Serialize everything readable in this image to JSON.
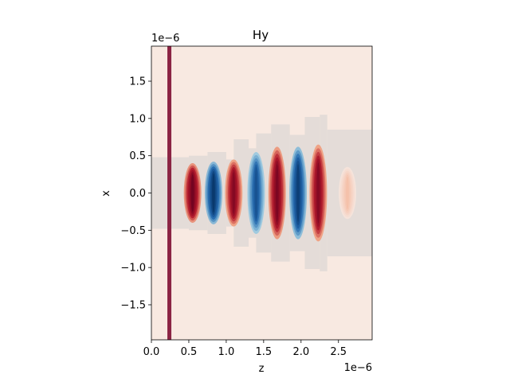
{
  "chart_data": {
    "type": "heatmap",
    "title": "Hy",
    "xlabel": "z",
    "ylabel": "x",
    "xlim": [
      0,
      2.95e-06
    ],
    "ylim": [
      -1.97e-06,
      1.97e-06
    ],
    "x_offset_text": "1e−6",
    "y_offset_text": "1e−6",
    "x_ticks": [
      0.0,
      5e-07,
      1e-06,
      1.5e-06,
      2e-06,
      2.5e-06
    ],
    "x_tick_labels": [
      "0.0",
      "0.5",
      "1.0",
      "1.5",
      "2.0",
      "2.5"
    ],
    "y_ticks": [
      1.5e-06,
      1e-06,
      5e-07,
      0.0,
      -5e-07,
      -1e-06,
      -1.5e-06
    ],
    "y_tick_labels": [
      "1.5",
      "1.0",
      "0.5",
      "0.0",
      "−0.5",
      "−1.0",
      "−1.5"
    ],
    "colormap": "RdBu_r",
    "background_color": "#f8e9e1",
    "source_line": {
      "z": 2.4e-07,
      "color": "#8b2444"
    },
    "gray_regions": [
      {
        "z_start": 0.0,
        "z_end": 5e-07,
        "half_width": 4.8e-07
      },
      {
        "z_start": 5e-07,
        "z_end": 7.5e-07,
        "half_width": 5e-07
      },
      {
        "z_start": 7.5e-07,
        "z_end": 1e-06,
        "half_width": 5.5e-07
      },
      {
        "z_start": 1e-06,
        "z_end": 1.1e-06,
        "half_width": 4.5e-07
      },
      {
        "z_start": 1.1e-06,
        "z_end": 1.3e-06,
        "half_width": 7.2e-07
      },
      {
        "z_start": 1.3e-06,
        "z_end": 1.4e-06,
        "half_width": 6e-07
      },
      {
        "z_start": 1.4e-06,
        "z_end": 1.6e-06,
        "half_width": 8e-07
      },
      {
        "z_start": 1.6e-06,
        "z_end": 1.85e-06,
        "half_width": 9.2e-07
      },
      {
        "z_start": 1.85e-06,
        "z_end": 2.05e-06,
        "half_width": 7.8e-07
      },
      {
        "z_start": 2.05e-06,
        "z_end": 2.25e-06,
        "half_width": 1.02e-06
      },
      {
        "z_start": 2.25e-06,
        "z_end": 2.35e-06,
        "half_width": 1.05e-06
      },
      {
        "z_start": 2.35e-06,
        "z_end": 2.95e-06,
        "half_width": 8.5e-07
      }
    ],
    "field_lobes": [
      {
        "z": 5.5e-07,
        "value": 0.95,
        "half_width": 4e-07
      },
      {
        "z": 8.3e-07,
        "value": -0.95,
        "half_width": 4.2e-07
      },
      {
        "z": 1.1e-06,
        "value": 0.85,
        "half_width": 4.5e-07
      },
      {
        "z": 1.4e-06,
        "value": -0.75,
        "half_width": 5.5e-07
      },
      {
        "z": 1.68e-06,
        "value": 0.9,
        "half_width": 6.2e-07
      },
      {
        "z": 1.96e-06,
        "value": -0.9,
        "half_width": 6.2e-07
      },
      {
        "z": 2.23e-06,
        "value": 0.85,
        "half_width": 6.5e-07
      },
      {
        "z": 2.62e-06,
        "value": 0.2,
        "half_width": 3.5e-07
      }
    ]
  }
}
